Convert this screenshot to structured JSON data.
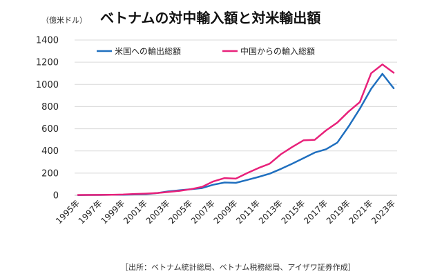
{
  "chart_data": {
    "type": "line",
    "title": "ベトナムの対中輸入額と対米輸出額",
    "unit_label": "（億米ドル）",
    "source": "［出所：ベトナム統計総局、ベトナム税務総局、アイザワ証券作成］",
    "x": [
      1995,
      1996,
      1997,
      1998,
      1999,
      2000,
      2001,
      2002,
      2003,
      2004,
      2005,
      2006,
      2007,
      2008,
      2009,
      2010,
      2011,
      2012,
      2013,
      2014,
      2015,
      2016,
      2017,
      2018,
      2019,
      2020,
      2021,
      2022,
      2023
    ],
    "x_tick_labels": [
      "1995年",
      "1997年",
      "1999年",
      "2001年",
      "2003年",
      "2005年",
      "2007年",
      "2009年",
      "2011年",
      "2013年",
      "2015年",
      "2017年",
      "2019年",
      "2021年",
      "2023年"
    ],
    "ylim": [
      0,
      1400
    ],
    "y_ticks": [
      0,
      200,
      400,
      600,
      800,
      1000,
      1200,
      1400
    ],
    "grid": true,
    "legend_position": "top",
    "series": [
      {
        "name": "米国への輸出総額",
        "color": "#1f6fbf",
        "values": [
          2,
          3,
          3,
          5,
          5,
          8,
          10,
          20,
          35,
          45,
          55,
          65,
          95,
          115,
          112,
          138,
          165,
          195,
          238,
          285,
          335,
          385,
          415,
          475,
          620,
          780,
          960,
          1095,
          965
        ]
      },
      {
        "name": "中国からの輸入総額",
        "color": "#e8217a",
        "values": [
          3,
          3,
          4,
          5,
          7,
          12,
          15,
          20,
          30,
          40,
          55,
          75,
          125,
          155,
          150,
          200,
          245,
          285,
          370,
          435,
          495,
          500,
          585,
          655,
          755,
          840,
          1100,
          1180,
          1105
        ]
      }
    ]
  }
}
